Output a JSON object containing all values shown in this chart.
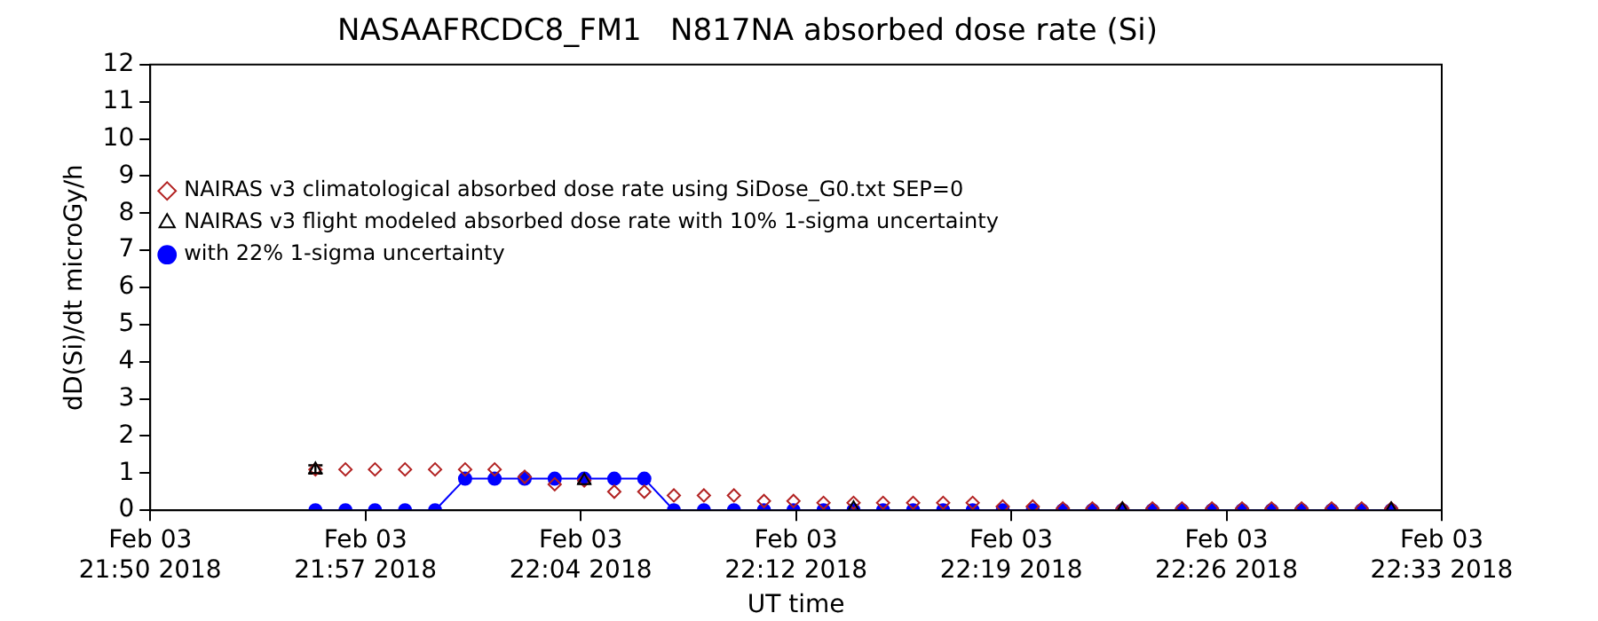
{
  "chart_data": {
    "type": "line",
    "title": "NASAAFRCDC8_FM1   N817NA absorbed dose rate (Si)",
    "xlabel": "UT time",
    "ylabel": "dD(Si)/dt microGy/h",
    "xlim": [
      "2018-02-03T21:50:00",
      "2018-02-03T22:33:00"
    ],
    "xticks": [
      {
        "value": "2018-02-03T21:50:00",
        "label": "Feb 03\n21:50 2018"
      },
      {
        "value": "2018-02-03T21:57:10",
        "label": "Feb 03\n21:57 2018"
      },
      {
        "value": "2018-02-03T22:04:20",
        "label": "Feb 03\n22:04 2018"
      },
      {
        "value": "2018-02-03T22:11:30",
        "label": "Feb 03\n22:12 2018"
      },
      {
        "value": "2018-02-03T22:18:40",
        "label": "Feb 03\n22:19 2018"
      },
      {
        "value": "2018-02-03T22:25:50",
        "label": "Feb 03\n22:26 2018"
      },
      {
        "value": "2018-02-03T22:33:00",
        "label": "Feb 03\n22:33 2018"
      }
    ],
    "ylim": [
      0,
      12
    ],
    "yticks": [
      0,
      1,
      2,
      3,
      4,
      5,
      6,
      7,
      8,
      9,
      10,
      11,
      12
    ],
    "grid": false,
    "legend": "top",
    "x": [
      "2018-02-03T21:55:30",
      "2018-02-03T21:56:30",
      "2018-02-03T21:57:29",
      "2018-02-03T21:58:29",
      "2018-02-03T21:59:29",
      "2018-02-03T22:00:29",
      "2018-02-03T22:01:28",
      "2018-02-03T22:02:28",
      "2018-02-03T22:03:28",
      "2018-02-03T22:04:27",
      "2018-02-03T22:05:27",
      "2018-02-03T22:06:27",
      "2018-02-03T22:07:26",
      "2018-02-03T22:08:26",
      "2018-02-03T22:09:26",
      "2018-02-03T22:10:26",
      "2018-02-03T22:11:25",
      "2018-02-03T22:12:25",
      "2018-02-03T22:13:25",
      "2018-02-03T22:14:24",
      "2018-02-03T22:15:24",
      "2018-02-03T22:16:24",
      "2018-02-03T22:17:23",
      "2018-02-03T22:18:23",
      "2018-02-03T22:19:23",
      "2018-02-03T22:20:23",
      "2018-02-03T22:21:22",
      "2018-02-03T22:22:22",
      "2018-02-03T22:23:22",
      "2018-02-03T22:24:21",
      "2018-02-03T22:25:21",
      "2018-02-03T22:26:21",
      "2018-02-03T22:27:20",
      "2018-02-03T22:28:20",
      "2018-02-03T22:29:20",
      "2018-02-03T22:30:20",
      "2018-02-03T22:31:19"
    ],
    "series": [
      {
        "name": "NAIRAS v3 climatological absorbed dose rate using SiDose_G0.txt SEP=0",
        "type": "scatter",
        "marker": "diamond",
        "color": "#b22222",
        "values": [
          1.1,
          1.1,
          1.1,
          1.1,
          1.1,
          1.1,
          1.1,
          0.9,
          0.7,
          0.8,
          0.5,
          0.5,
          0.4,
          0.4,
          0.4,
          0.25,
          0.25,
          0.2,
          0.2,
          0.2,
          0.2,
          0.2,
          0.2,
          0.1,
          0.1,
          0.05,
          0.05,
          0.05,
          0.05,
          0.05,
          0.05,
          0.05,
          0.05,
          0.05,
          0.05,
          0.05,
          0.05
        ]
      },
      {
        "name": "NAIRAS v3 flight modeled absorbed dose rate with 10% 1-sigma uncertainty",
        "type": "scatter",
        "marker": "triangle",
        "color": "#000000",
        "x": [
          "2018-02-03T21:55:30",
          "2018-02-03T22:04:27",
          "2018-02-03T22:13:25",
          "2018-02-03T22:22:22",
          "2018-02-03T22:31:19"
        ],
        "values": [
          1.1,
          0.8,
          0.05,
          0.02,
          0.02
        ],
        "errors": [
          0.11,
          0.08,
          null,
          null,
          null
        ]
      },
      {
        "name": "with 22% 1-sigma uncertainty",
        "type": "line",
        "marker": "circle",
        "color": "#0000ff",
        "values": [
          0,
          0,
          0,
          0,
          0,
          0.85,
          0.85,
          0.85,
          0.85,
          0.85,
          0.85,
          0.85,
          0,
          0,
          0,
          0,
          0,
          0,
          0,
          0,
          0,
          0,
          0,
          0,
          0,
          0,
          0,
          0,
          0,
          0,
          0,
          0,
          0,
          0,
          0,
          0,
          0
        ]
      }
    ]
  }
}
